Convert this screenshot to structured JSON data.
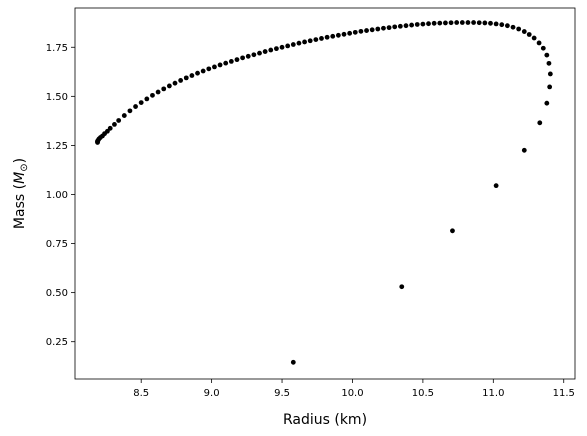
{
  "chart_data": {
    "type": "scatter",
    "title": "",
    "xlabel": "Radius (km)",
    "ylabel_prefix": "Mass (",
    "ylabel_symbol": "M",
    "ylabel_subscript": "⊙",
    "ylabel_suffix": ")",
    "xlim": [
      8.03,
      11.58
    ],
    "ylim": [
      0.06,
      1.95
    ],
    "xticks": [
      8.5,
      9.0,
      9.5,
      10.0,
      10.5,
      11.0,
      11.5
    ],
    "xtick_labels": [
      "8.5",
      "9.0",
      "9.5",
      "10.0",
      "10.5",
      "11.0",
      "11.5"
    ],
    "yticks": [
      0.25,
      0.5,
      0.75,
      1.0,
      1.25,
      1.5,
      1.75
    ],
    "ytick_labels": [
      "0.25",
      "0.50",
      "0.75",
      "1.00",
      "1.25",
      "1.50",
      "1.75"
    ],
    "grid": false,
    "legend": "none",
    "marker_color": "#000000",
    "series": [
      {
        "points": [
          [
            9.58,
            0.145
          ],
          [
            10.35,
            0.53
          ],
          [
            10.71,
            0.815
          ],
          [
            11.02,
            1.045
          ],
          [
            11.22,
            1.225
          ],
          [
            11.33,
            1.365
          ],
          [
            11.38,
            1.465
          ],
          [
            11.4,
            1.548
          ],
          [
            11.405,
            1.614
          ],
          [
            11.395,
            1.668
          ],
          [
            11.38,
            1.71
          ],
          [
            11.355,
            1.745
          ],
          [
            11.325,
            1.772
          ],
          [
            11.29,
            1.797
          ],
          [
            11.255,
            1.815
          ],
          [
            11.22,
            1.83
          ],
          [
            11.18,
            1.843
          ],
          [
            11.14,
            1.852
          ],
          [
            11.1,
            1.86
          ],
          [
            11.06,
            1.865
          ],
          [
            11.02,
            1.869
          ],
          [
            10.98,
            1.872
          ],
          [
            10.94,
            1.874
          ],
          [
            10.9,
            1.875
          ],
          [
            10.86,
            1.876
          ],
          [
            10.82,
            1.876
          ],
          [
            10.78,
            1.876
          ],
          [
            10.74,
            1.876
          ],
          [
            10.7,
            1.875
          ],
          [
            10.66,
            1.874
          ],
          [
            10.62,
            1.873
          ],
          [
            10.58,
            1.872
          ],
          [
            10.54,
            1.87
          ],
          [
            10.5,
            1.868
          ],
          [
            10.46,
            1.866
          ],
          [
            10.42,
            1.863
          ],
          [
            10.38,
            1.86
          ],
          [
            10.34,
            1.857
          ],
          [
            10.3,
            1.854
          ],
          [
            10.26,
            1.85
          ],
          [
            10.22,
            1.847
          ],
          [
            10.18,
            1.843
          ],
          [
            10.14,
            1.839
          ],
          [
            10.1,
            1.835
          ],
          [
            10.06,
            1.831
          ],
          [
            10.02,
            1.826
          ],
          [
            9.98,
            1.821
          ],
          [
            9.94,
            1.816
          ],
          [
            9.9,
            1.811
          ],
          [
            9.86,
            1.806
          ],
          [
            9.82,
            1.801
          ],
          [
            9.78,
            1.795
          ],
          [
            9.74,
            1.789
          ],
          [
            9.7,
            1.783
          ],
          [
            9.66,
            1.777
          ],
          [
            9.62,
            1.771
          ],
          [
            9.58,
            1.764
          ],
          [
            9.54,
            1.757
          ],
          [
            9.5,
            1.75
          ],
          [
            9.46,
            1.743
          ],
          [
            9.42,
            1.736
          ],
          [
            9.38,
            1.728
          ],
          [
            9.34,
            1.72
          ],
          [
            9.3,
            1.712
          ],
          [
            9.26,
            1.704
          ],
          [
            9.22,
            1.696
          ],
          [
            9.18,
            1.687
          ],
          [
            9.14,
            1.678
          ],
          [
            9.1,
            1.669
          ],
          [
            9.06,
            1.66
          ],
          [
            9.02,
            1.65
          ],
          [
            8.98,
            1.64
          ],
          [
            8.94,
            1.629
          ],
          [
            8.9,
            1.618
          ],
          [
            8.86,
            1.606
          ],
          [
            8.82,
            1.594
          ],
          [
            8.78,
            1.581
          ],
          [
            8.74,
            1.567
          ],
          [
            8.7,
            1.553
          ],
          [
            8.66,
            1.538
          ],
          [
            8.62,
            1.522
          ],
          [
            8.58,
            1.505
          ],
          [
            8.54,
            1.487
          ],
          [
            8.5,
            1.468
          ],
          [
            8.46,
            1.448
          ],
          [
            8.42,
            1.426
          ],
          [
            8.38,
            1.402
          ],
          [
            8.34,
            1.377
          ],
          [
            8.31,
            1.357
          ],
          [
            8.28,
            1.337
          ],
          [
            8.26,
            1.322
          ],
          [
            8.24,
            1.31
          ],
          [
            8.225,
            1.298
          ],
          [
            8.21,
            1.29
          ],
          [
            8.2,
            1.283
          ],
          [
            8.195,
            1.277
          ],
          [
            8.19,
            1.272
          ],
          [
            8.19,
            1.268
          ],
          [
            8.19,
            1.265
          ]
        ]
      }
    ]
  }
}
